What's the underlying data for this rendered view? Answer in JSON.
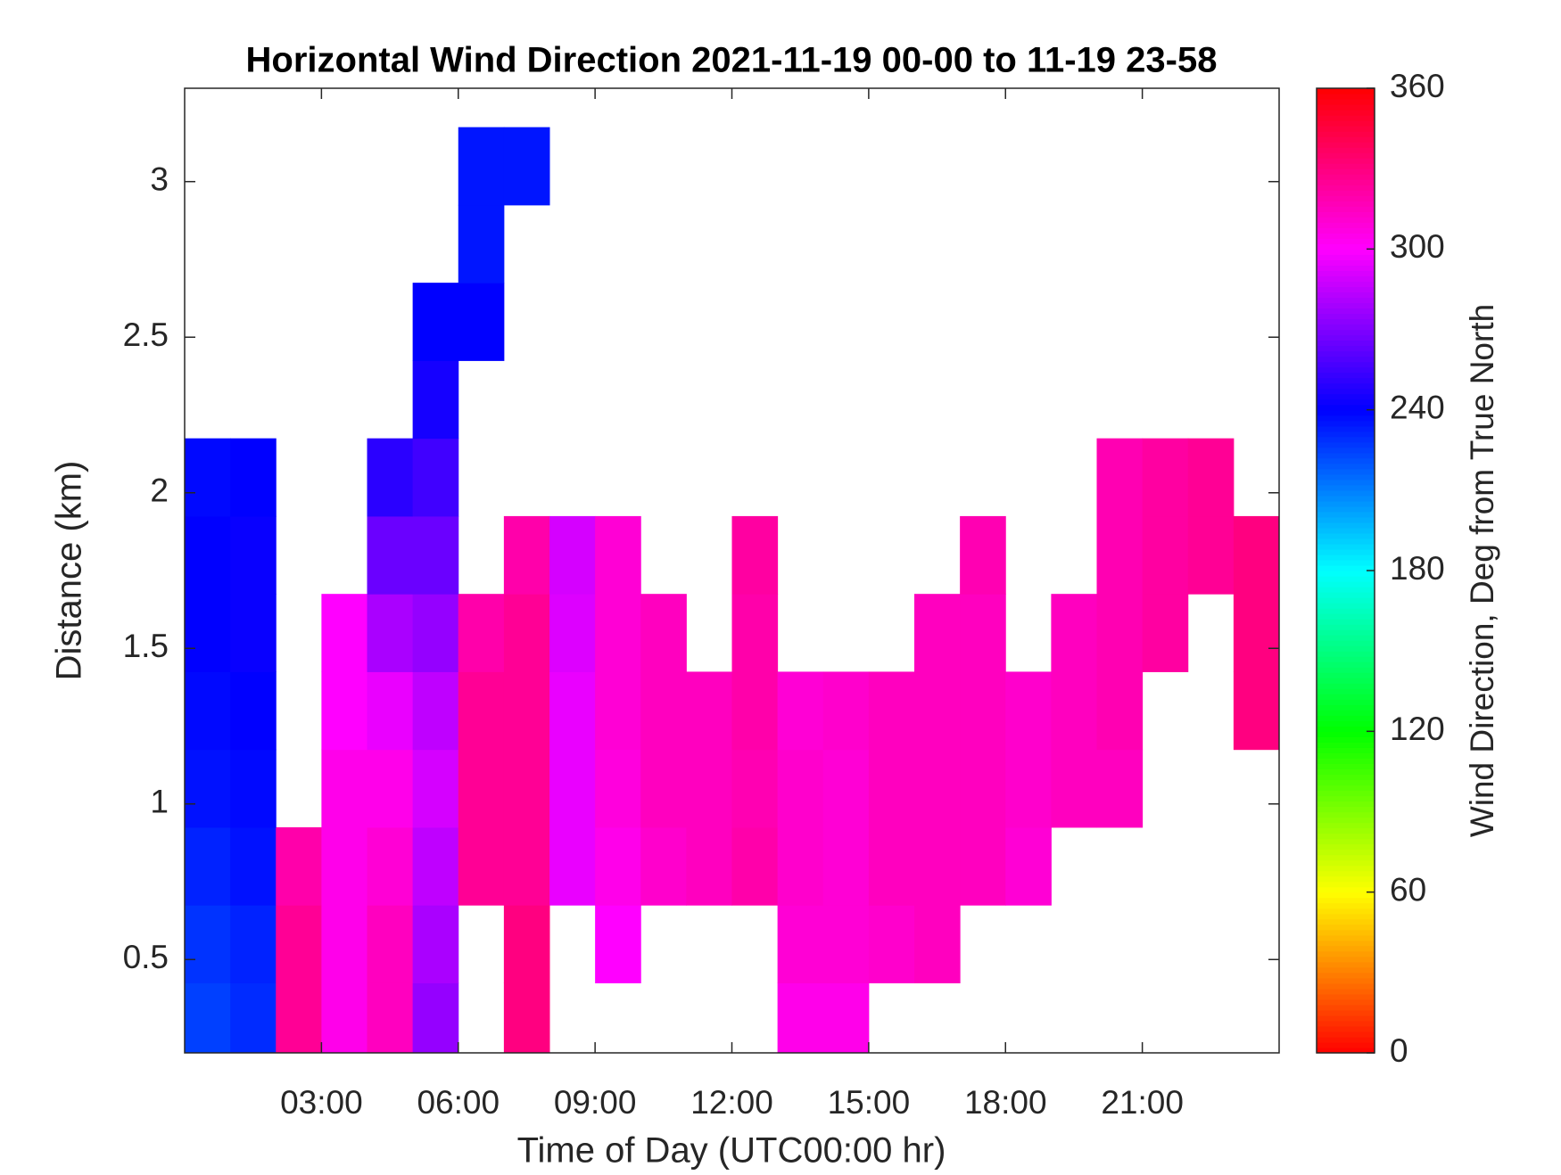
{
  "chart_data": {
    "type": "heatmap",
    "title": "Horizontal Wind Direction 2021-11-19 00-00 to 11-19 23-58",
    "x_label": "Time of Day (UTC00:00 hr)",
    "y_label": "Distance (km)",
    "colorbar_label": "Wind Direction, Deg from True North",
    "colormap": "hsv",
    "x": [
      0.5,
      1.5,
      2.5,
      3.5,
      4.5,
      5.5,
      6.5,
      7.5,
      8.5,
      9.5,
      10.5,
      11.5,
      12.5,
      13.5,
      14.5,
      15.5,
      16.5,
      17.5,
      18.5,
      19.5,
      20.5,
      21.5,
      22.5,
      23.5
    ],
    "y": [
      0.3,
      0.55,
      0.8,
      1.05,
      1.3,
      1.55,
      1.8,
      2.05,
      2.3,
      2.55,
      2.8,
      3.05
    ],
    "z": [
      [
        225,
        230,
        325,
        305,
        315,
        275,
        null,
        330,
        null,
        null,
        null,
        null,
        null,
        305,
        305,
        null,
        null,
        null,
        null,
        null,
        null,
        null,
        null,
        null
      ],
      [
        228,
        232,
        325,
        305,
        315,
        280,
        null,
        330,
        null,
        300,
        null,
        null,
        null,
        310,
        310,
        312,
        315,
        null,
        null,
        null,
        null,
        null,
        null,
        null
      ],
      [
        232,
        236,
        320,
        305,
        310,
        285,
        325,
        325,
        295,
        305,
        312,
        315,
        320,
        312,
        310,
        315,
        315,
        315,
        310,
        null,
        null,
        null,
        null,
        null
      ],
      [
        236,
        238,
        null,
        305,
        305,
        290,
        325,
        325,
        295,
        308,
        315,
        315,
        318,
        312,
        310,
        315,
        315,
        315,
        312,
        315,
        315,
        null,
        null,
        null
      ],
      [
        238,
        240,
        null,
        300,
        295,
        285,
        325,
        325,
        295,
        310,
        315,
        315,
        320,
        310,
        312,
        315,
        315,
        315,
        312,
        315,
        318,
        null,
        null,
        330
      ],
      [
        240,
        242,
        null,
        300,
        280,
        275,
        320,
        325,
        292,
        310,
        315,
        null,
        320,
        null,
        null,
        null,
        315,
        315,
        null,
        315,
        318,
        322,
        null,
        330
      ],
      [
        240,
        242,
        null,
        null,
        265,
        265,
        null,
        320,
        290,
        310,
        null,
        null,
        322,
        null,
        null,
        null,
        null,
        318,
        null,
        null,
        318,
        322,
        325,
        330
      ],
      [
        238,
        240,
        null,
        null,
        250,
        255,
        null,
        null,
        null,
        null,
        null,
        null,
        null,
        null,
        null,
        null,
        null,
        null,
        null,
        null,
        318,
        322,
        325,
        null
      ],
      [
        null,
        null,
        null,
        null,
        null,
        245,
        null,
        null,
        null,
        null,
        null,
        null,
        null,
        null,
        null,
        null,
        null,
        null,
        null,
        null,
        null,
        null,
        null,
        null
      ],
      [
        null,
        null,
        null,
        null,
        null,
        240,
        240,
        null,
        null,
        null,
        null,
        null,
        null,
        null,
        null,
        null,
        null,
        null,
        null,
        null,
        null,
        null,
        null,
        null
      ],
      [
        null,
        null,
        null,
        null,
        null,
        null,
        235,
        null,
        null,
        null,
        null,
        null,
        null,
        null,
        null,
        null,
        null,
        null,
        null,
        null,
        null,
        null,
        null,
        null
      ],
      [
        null,
        null,
        null,
        null,
        null,
        null,
        235,
        235,
        null,
        null,
        null,
        null,
        null,
        null,
        null,
        null,
        null,
        null,
        null,
        null,
        null,
        null,
        null,
        null
      ]
    ],
    "xlim": [
      0,
      24
    ],
    "xticks": [
      {
        "value": 3,
        "label": "03:00"
      },
      {
        "value": 6,
        "label": "06:00"
      },
      {
        "value": 9,
        "label": "09:00"
      },
      {
        "value": 12,
        "label": "12:00"
      },
      {
        "value": 15,
        "label": "15:00"
      },
      {
        "value": 18,
        "label": "18:00"
      },
      {
        "value": 21,
        "label": "21:00"
      }
    ],
    "ylim": [
      0.2,
      3.3
    ],
    "yticks": [
      0.5,
      1,
      1.5,
      2,
      2.5,
      3
    ],
    "clim": [
      0,
      360
    ],
    "cticks": [
      0,
      60,
      120,
      180,
      240,
      300,
      360
    ]
  }
}
